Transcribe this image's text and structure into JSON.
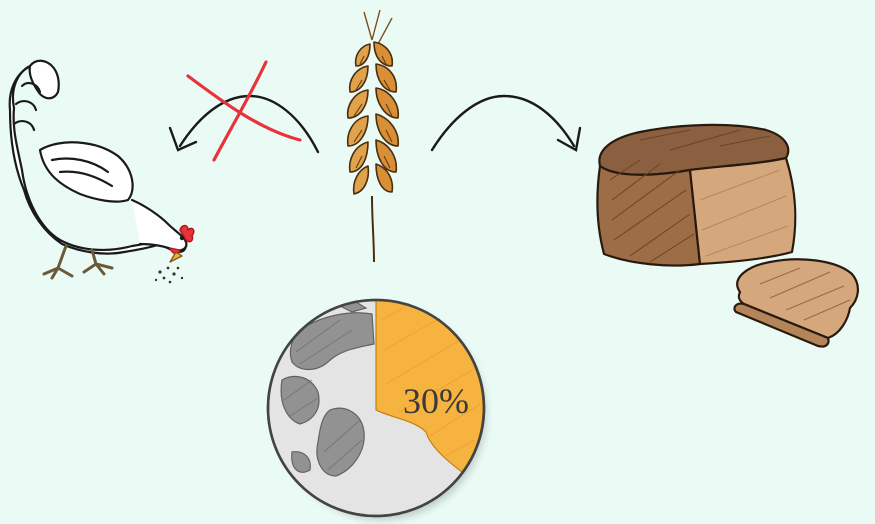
{
  "diagram": {
    "nodes": [
      {
        "id": "chicken",
        "icon": "chicken-icon"
      },
      {
        "id": "wheat",
        "icon": "wheat-icon"
      },
      {
        "id": "bread",
        "icon": "bread-icon"
      },
      {
        "id": "globe",
        "icon": "globe-icon"
      }
    ],
    "edges": [
      {
        "from": "wheat",
        "to": "chicken",
        "crossed_out": true
      },
      {
        "from": "wheat",
        "to": "bread",
        "crossed_out": false
      }
    ],
    "globe_share": {
      "label": "30%",
      "fraction": 0.3
    }
  },
  "colors": {
    "background": "#eafbf6",
    "wheat": "#e0a24a",
    "bread": "#a87852",
    "globe_slice": "#f7b340",
    "cross": "#e8333a"
  }
}
